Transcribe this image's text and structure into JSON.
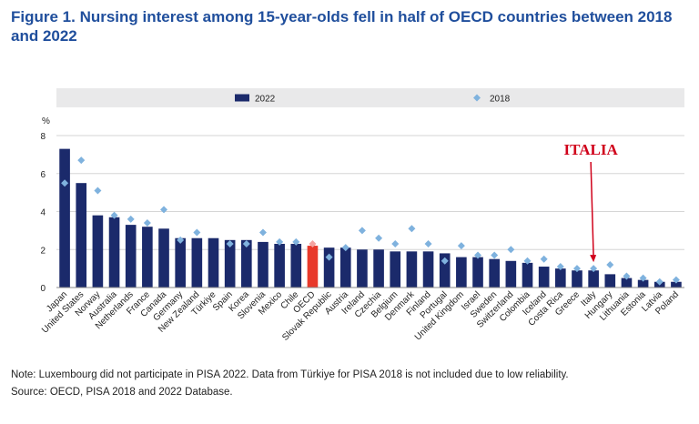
{
  "chart_data": {
    "type": "bar",
    "title": "Figure 1. Nursing interest among 15-year-olds fell in half of OECD countries between 2018 and 2022",
    "y_label": "%",
    "categories": [
      "Japan",
      "United States",
      "Norway",
      "Australia",
      "Netherlands",
      "France",
      "Canada",
      "Germany",
      "New Zealand",
      "Türkiye",
      "Spain",
      "Korea",
      "Slovenia",
      "Mexico",
      "Chile",
      "OECD",
      "Slovak Republic",
      "Austria",
      "Ireland",
      "Czechia",
      "Belgium",
      "Denmark",
      "Finland",
      "Portugal",
      "United Kingdom",
      "Israel",
      "Sweden",
      "Switzerland",
      "Colombia",
      "Iceland",
      "Costa Rica",
      "Greece",
      "Italy",
      "Hungary",
      "Lithuania",
      "Estonia",
      "Latvia",
      "Poland"
    ],
    "series": [
      {
        "name": "2022",
        "mark": "bar",
        "color": "#1b2a6b",
        "highlight_color": "#e8392b",
        "values": [
          7.3,
          5.5,
          3.8,
          3.7,
          3.3,
          3.2,
          3.1,
          2.6,
          2.6,
          2.6,
          2.5,
          2.5,
          2.4,
          2.3,
          2.3,
          2.2,
          2.1,
          2.1,
          2.0,
          2.0,
          1.9,
          1.9,
          1.9,
          1.8,
          1.6,
          1.6,
          1.5,
          1.4,
          1.3,
          1.1,
          1.0,
          0.9,
          0.9,
          0.7,
          0.5,
          0.4,
          0.3,
          0.3
        ]
      },
      {
        "name": "2018",
        "mark": "diamond",
        "color": "#7fb2de",
        "highlight_color": "#f4a3a0",
        "values": [
          5.5,
          6.7,
          5.1,
          3.8,
          3.6,
          3.4,
          4.1,
          2.5,
          2.9,
          null,
          2.3,
          2.3,
          2.9,
          2.4,
          2.4,
          2.3,
          1.6,
          2.1,
          3.0,
          2.6,
          2.3,
          3.1,
          2.3,
          1.4,
          2.2,
          1.7,
          1.7,
          2.0,
          1.4,
          1.5,
          1.1,
          1.0,
          1.0,
          1.2,
          0.6,
          0.5,
          0.3,
          0.4
        ]
      }
    ],
    "highlight_category": "OECD",
    "ylim": [
      0,
      8
    ],
    "yticks": [
      0,
      2,
      4,
      6,
      8
    ],
    "grid": true,
    "annotation": {
      "text": "ITALIA",
      "target": "Italy",
      "color": "#d0021b"
    },
    "note": "Note: Luxembourg did not participate in PISA 2022. Data from Türkiye for PISA 2018 is not included due to low reliability.",
    "source": "Source: OECD, PISA 2018 and 2022 Database."
  }
}
